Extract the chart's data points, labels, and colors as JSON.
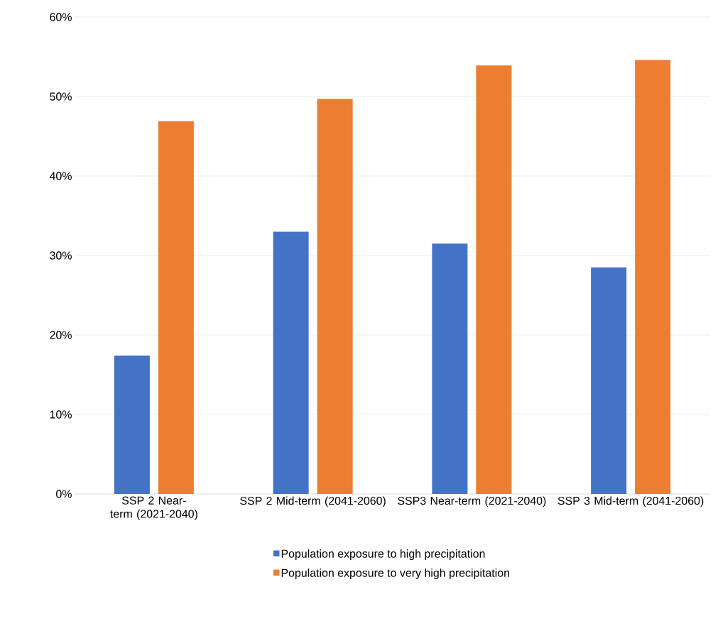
{
  "chart_data": {
    "type": "bar",
    "categories": [
      "SSP 2 Near-term (2021-2040)",
      "SSP 2 Mid-term (2041-2060)",
      "SSP3 Near-term (2021-2040)",
      "SSP 3 Mid-term (2041-2060)"
    ],
    "series": [
      {
        "name": "Population exposure to high precipitation",
        "color": "#4472c4",
        "values": [
          17.4,
          33.0,
          31.5,
          28.5
        ]
      },
      {
        "name": "Population exposure to very high precipitation",
        "color": "#ed7d31",
        "values": [
          46.9,
          49.7,
          53.9,
          54.6
        ]
      }
    ],
    "ylim": [
      0,
      60
    ],
    "yticks": [
      {
        "value": 0,
        "label": "0%"
      },
      {
        "value": 10,
        "label": "10%"
      },
      {
        "value": 20,
        "label": "20%"
      },
      {
        "value": 30,
        "label": "30%"
      },
      {
        "value": 40,
        "label": "40%"
      },
      {
        "value": 50,
        "label": "50%"
      },
      {
        "value": 60,
        "label": "60%"
      }
    ],
    "grid": "y",
    "legend": "bottom"
  }
}
